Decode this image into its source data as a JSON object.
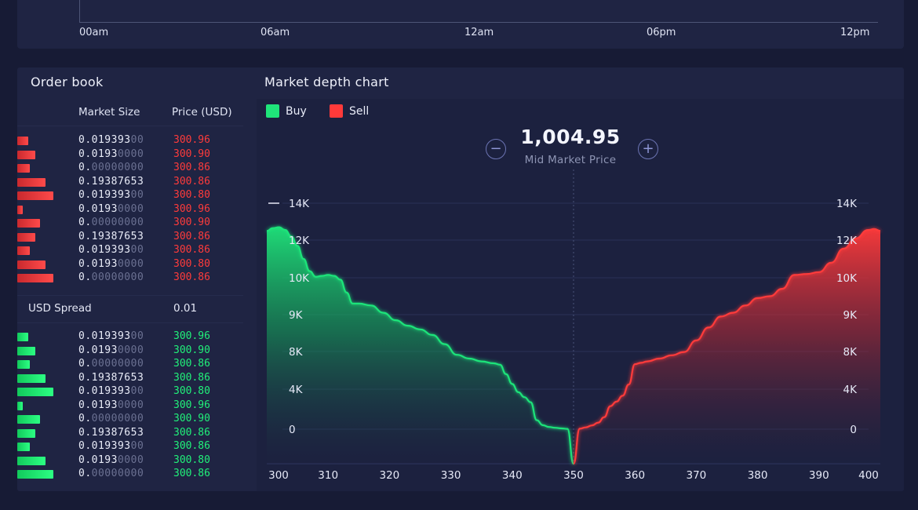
{
  "top_chart": {
    "x_ticks": [
      "00am",
      "06am",
      "12am",
      "06pm",
      "12pm"
    ]
  },
  "order_book": {
    "title": "Order book",
    "headers": {
      "size": "Market Size",
      "price": "Price (USD)"
    },
    "asks": [
      {
        "size_main": "0.019393",
        "size_dim": "00",
        "price": "300.96",
        "depth": 0.3
      },
      {
        "size_main": "0.0193",
        "size_dim": "0000",
        "price": "300.90",
        "depth": 0.5
      },
      {
        "size_main": "0.",
        "size_dim": "00000000",
        "price": "300.86",
        "depth": 0.35
      },
      {
        "size_main": "0.19387653",
        "size_dim": "",
        "price": "300.86",
        "depth": 0.78
      },
      {
        "size_main": "0.019393",
        "size_dim": "00",
        "price": "300.80",
        "depth": 1.0
      },
      {
        "size_main": "0.0193",
        "size_dim": "0000",
        "price": "300.96",
        "depth": 0.15
      },
      {
        "size_main": "0.",
        "size_dim": "00000000",
        "price": "300.90",
        "depth": 0.62
      },
      {
        "size_main": "0.19387653",
        "size_dim": "",
        "price": "300.86",
        "depth": 0.5
      },
      {
        "size_main": "0.019393",
        "size_dim": "00",
        "price": "300.86",
        "depth": 0.35
      },
      {
        "size_main": "0.0193",
        "size_dim": "0000",
        "price": "300.80",
        "depth": 0.78
      },
      {
        "size_main": "0.",
        "size_dim": "00000000",
        "price": "300.86",
        "depth": 1.0
      }
    ],
    "spread": {
      "label": "USD Spread",
      "value": "0.01"
    },
    "bids": [
      {
        "size_main": "0.019393",
        "size_dim": "00",
        "price": "300.96",
        "depth": 0.3
      },
      {
        "size_main": "0.0193",
        "size_dim": "0000",
        "price": "300.90",
        "depth": 0.5
      },
      {
        "size_main": "0.",
        "size_dim": "00000000",
        "price": "300.86",
        "depth": 0.35
      },
      {
        "size_main": "0.19387653",
        "size_dim": "",
        "price": "300.86",
        "depth": 0.78
      },
      {
        "size_main": "0.019393",
        "size_dim": "00",
        "price": "300.80",
        "depth": 1.0
      },
      {
        "size_main": "0.0193",
        "size_dim": "0000",
        "price": "300.96",
        "depth": 0.15
      },
      {
        "size_main": "0.",
        "size_dim": "00000000",
        "price": "300.90",
        "depth": 0.62
      },
      {
        "size_main": "0.19387653",
        "size_dim": "",
        "price": "300.86",
        "depth": 0.5
      },
      {
        "size_main": "0.019393",
        "size_dim": "00",
        "price": "300.86",
        "depth": 0.35
      },
      {
        "size_main": "0.0193",
        "size_dim": "0000",
        "price": "300.80",
        "depth": 0.78
      },
      {
        "size_main": "0.",
        "size_dim": "00000000",
        "price": "300.86",
        "depth": 1.0
      }
    ]
  },
  "market_depth": {
    "title": "Market depth chart",
    "legend": {
      "buy": "Buy",
      "sell": "Sell"
    },
    "mid_price": "1,004.95",
    "mid_label": "Mid Market Price",
    "zoom_out_icon": "minus-circle-icon",
    "zoom_in_icon": "plus-circle-icon"
  },
  "colors": {
    "buy": "#1fe47a",
    "sell": "#ff3a3a",
    "panel": "#1f2443",
    "background": "#171b35"
  },
  "chart_data": {
    "type": "area",
    "title": "Market depth chart",
    "x": [
      300,
      310,
      320,
      330,
      340,
      350,
      360,
      370,
      380,
      390,
      400
    ],
    "x_ticks": [
      "300",
      "310",
      "320",
      "330",
      "340",
      "350",
      "360",
      "370",
      "380",
      "390",
      "400"
    ],
    "y_ticks": [
      "14K",
      "12K",
      "10K",
      "9K",
      "8K",
      "4K",
      "0"
    ],
    "xlim": [
      300,
      400
    ],
    "mid_x": 350,
    "grid": true,
    "legend_position": "top-left",
    "series": [
      {
        "name": "Buy",
        "color": "#1fe47a",
        "x": [
          300,
          301,
          302,
          303,
          304,
          305,
          306,
          307,
          308,
          309,
          310,
          311,
          312,
          313,
          314,
          315,
          317,
          319,
          321,
          323,
          325,
          327,
          329,
          331,
          333,
          335,
          337,
          338,
          339,
          340,
          341,
          342,
          343,
          344,
          345,
          346,
          347,
          348,
          349,
          350
        ],
        "y": [
          12500,
          12650,
          12700,
          12550,
          12200,
          11700,
          11000,
          10350,
          10050,
          10100,
          10150,
          10100,
          9950,
          9600,
          9300,
          9300,
          9250,
          9050,
          8850,
          8700,
          8600,
          8450,
          8200,
          7650,
          7250,
          6950,
          6750,
          6600,
          5600,
          4550,
          3700,
          3200,
          2700,
          900,
          400,
          220,
          140,
          80,
          30,
          0
        ]
      },
      {
        "name": "Sell",
        "color": "#ff3a3a",
        "x": [
          350,
          351,
          352,
          353,
          354,
          355,
          356,
          357,
          358,
          359,
          360,
          361,
          362,
          364,
          366,
          368,
          370,
          372,
          374,
          376,
          378,
          380,
          382,
          384,
          386,
          388,
          390,
          392,
          394,
          396,
          398,
          399,
          400
        ],
        "y": [
          0,
          50,
          180,
          380,
          650,
          1200,
          2300,
          2750,
          3350,
          4500,
          6650,
          6800,
          6950,
          7250,
          7600,
          7950,
          8300,
          8650,
          8950,
          9050,
          9250,
          9450,
          9500,
          9700,
          10150,
          10200,
          10300,
          10800,
          11550,
          12100,
          12550,
          12600,
          12500
        ]
      }
    ]
  }
}
